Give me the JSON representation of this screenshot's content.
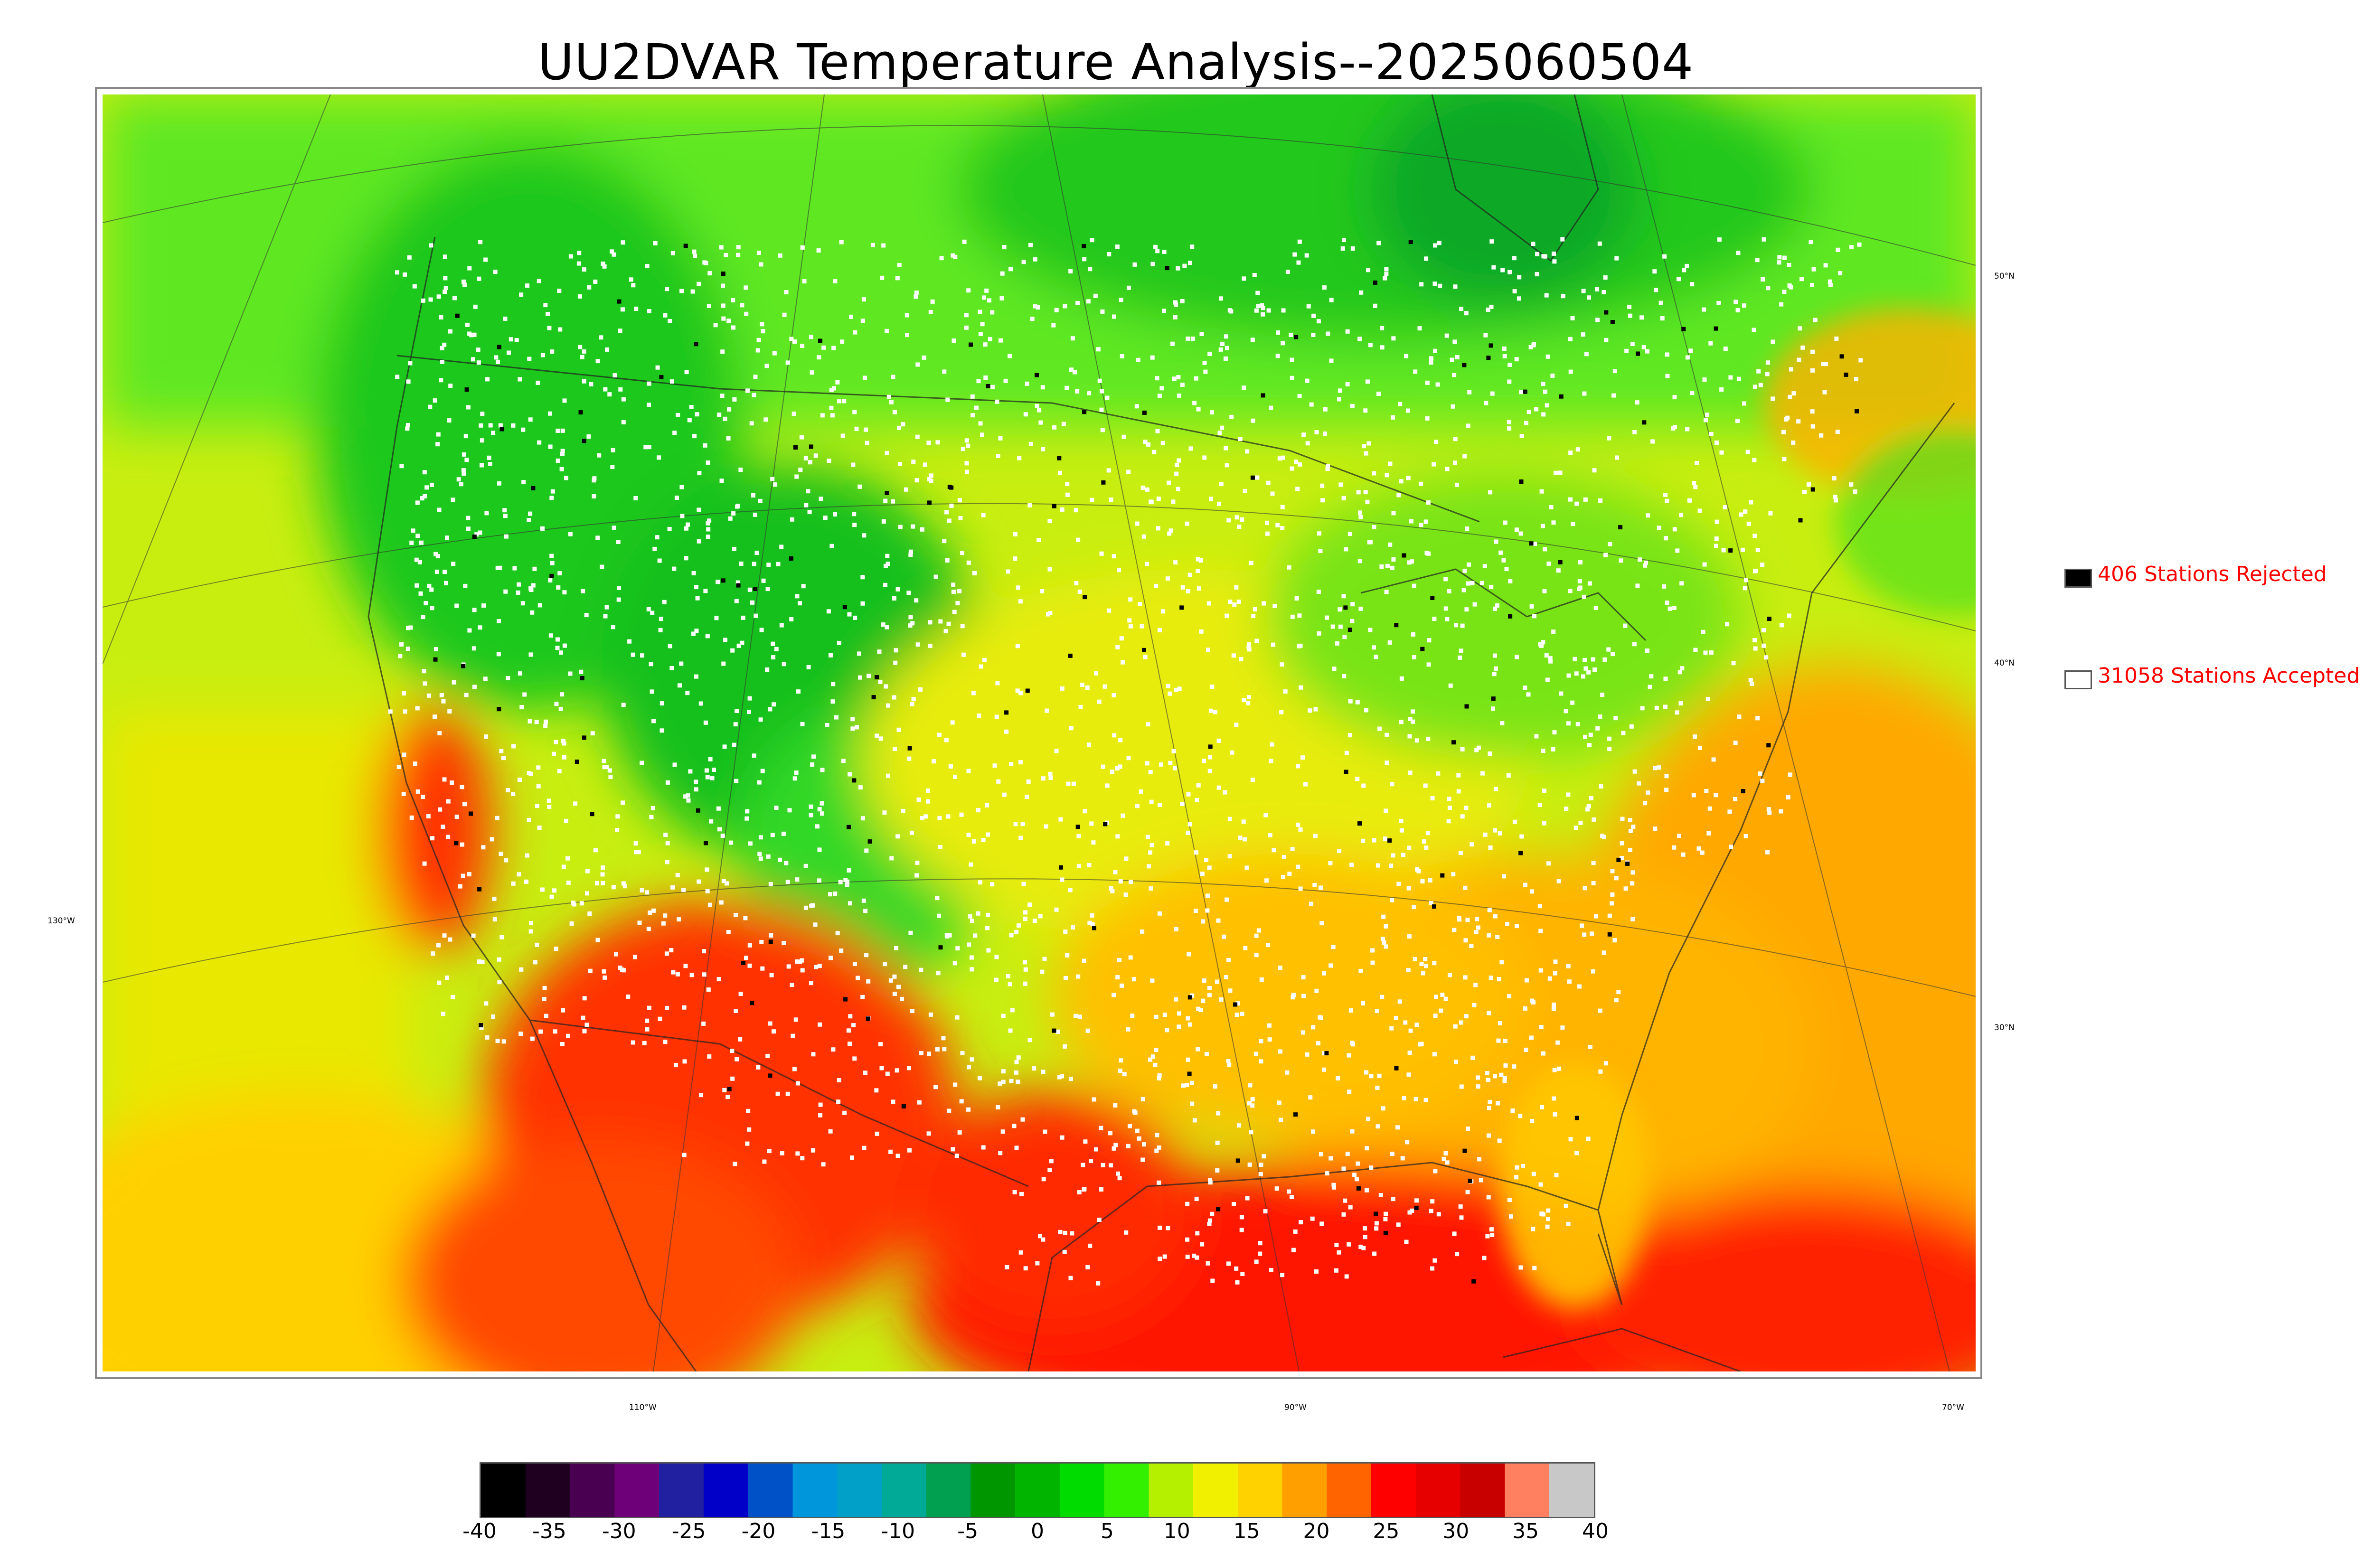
{
  "title": "UU2DVAR Temperature Analysis--2025060504",
  "map": {
    "latitude_labels": [
      "50°N",
      "40°N",
      "30°N"
    ],
    "longitude_labels": [
      "130°W",
      "110°W",
      "90°W",
      "70°W"
    ]
  },
  "legend": {
    "rejected": {
      "count": 406,
      "label": "406 Stations Rejected",
      "swatch_color": "#000000"
    },
    "accepted": {
      "count": 31058,
      "label": "31058 Stations Accepted",
      "swatch_color": "#ffffff"
    },
    "text_color": "#ff0000"
  },
  "colorbar": {
    "min": -40,
    "max": 40,
    "tick_labels": [
      "-40",
      "-35",
      "-30",
      "-25",
      "-20",
      "-15",
      "-10",
      "-5",
      "0",
      "5",
      "10",
      "15",
      "20",
      "25",
      "30",
      "35",
      "40"
    ],
    "colors": [
      "#000000",
      "#200020",
      "#4a0050",
      "#6e007a",
      "#2020a0",
      "#0000c8",
      "#0050c8",
      "#0096dc",
      "#00a0c8",
      "#00aa96",
      "#00a050",
      "#009600",
      "#00b400",
      "#00dc00",
      "#32f000",
      "#b4f000",
      "#f0f000",
      "#ffd200",
      "#ffa000",
      "#ff6400",
      "#ff0000",
      "#e60000",
      "#c80000",
      "#ff8060",
      "#c8c8c8"
    ]
  },
  "colors": {
    "cold": "#00b400",
    "cool": "#32f000",
    "mild": "#c8f000",
    "warm": "#ffd200",
    "hot": "#ff8c00",
    "very_hot": "#ff1a00",
    "station_accepted": "#ffffff",
    "station_rejected": "#000000"
  }
}
